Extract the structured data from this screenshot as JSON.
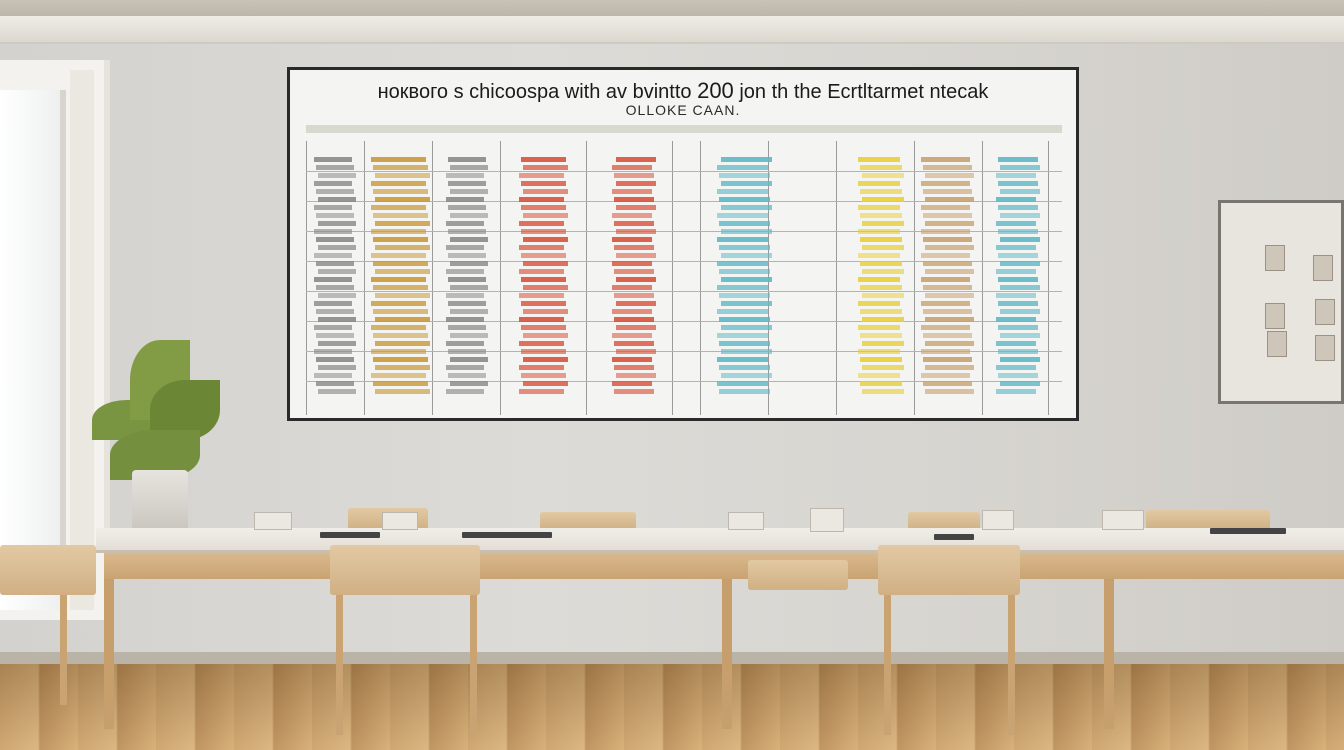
{
  "board": {
    "title": "ноквого s chicoospa with av bvintto",
    "title_number": "200",
    "title_tail": "jon th the Ecrtltarmet ntecak",
    "subtitle": "OLLOKE CAAN."
  },
  "colors": {
    "wall": "#d9d7d2",
    "board_frame": "#2a2a2a",
    "accent_red": "#d9533c",
    "accent_yellow": "#e9cf3a",
    "accent_teal": "#5fb9c7",
    "wood": "#c9a372"
  },
  "icons": [
    "plant-icon",
    "pin-board-icon"
  ]
}
